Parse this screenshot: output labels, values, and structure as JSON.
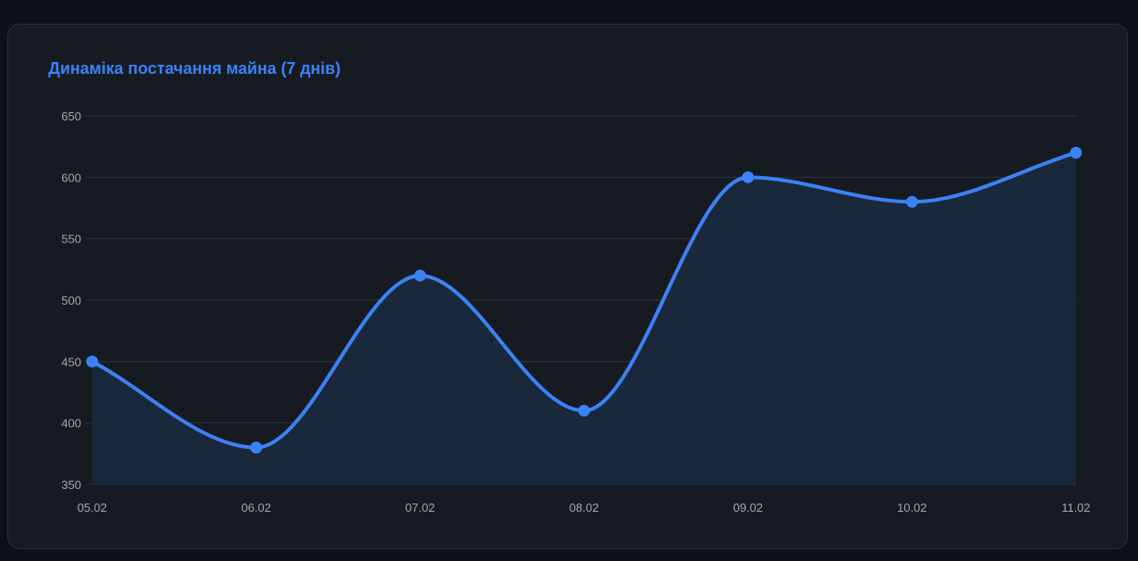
{
  "colors": {
    "background": "#0d1117",
    "card": "#161b22",
    "grid": "#2a3340",
    "accent": "#3b82f6",
    "fill": "#1b2a40",
    "text": "#a1a8b3"
  },
  "chart_data": {
    "type": "line",
    "title": "Динаміка постачання майна (7 днів)",
    "xlabel": "",
    "ylabel": "",
    "categories": [
      "05.02",
      "06.02",
      "07.02",
      "08.02",
      "09.02",
      "10.02",
      "11.02"
    ],
    "series": [
      {
        "values": [
          450,
          380,
          520,
          410,
          600,
          580,
          620
        ]
      }
    ],
    "ylim": [
      350,
      650
    ],
    "yticks": [
      350,
      400,
      450,
      500,
      550,
      600,
      650
    ],
    "smooth": true,
    "filled": true,
    "grid": true,
    "legend": "none"
  }
}
